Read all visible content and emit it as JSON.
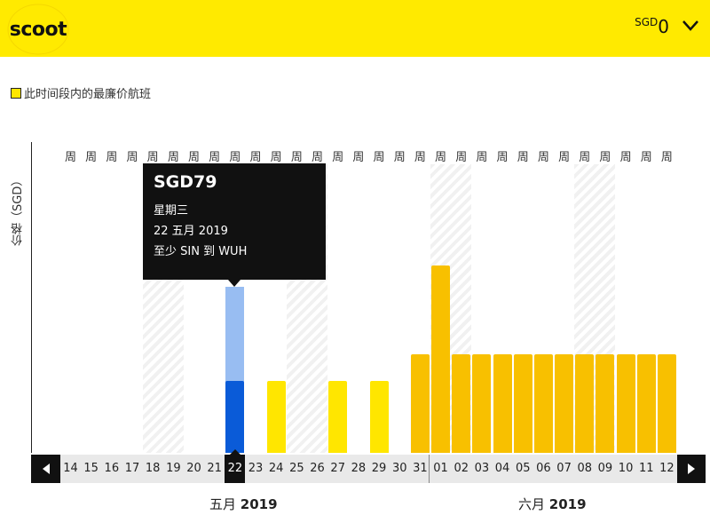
{
  "header": {
    "logo_text": "scoot",
    "currency_code": "SGD",
    "currency_count": "0"
  },
  "legend": {
    "text": "此时间段内的最廉价航班"
  },
  "y_axis_label": "价格（SGD）",
  "week_label": "周",
  "navigation": {
    "prev_icon": "triangle-left-icon",
    "next_icon": "triangle-right-icon"
  },
  "months": [
    {
      "name": "五月",
      "year": "2019"
    },
    {
      "name": "六月",
      "year": "2019"
    }
  ],
  "tooltip": {
    "price": "SGD79",
    "weekday": "星期三",
    "date": "22 五月 2019",
    "route": "至少 SIN 到 WUH"
  },
  "colors": {
    "brand_yellow": "#FFEA00",
    "bar_yellow": "#FFE600",
    "bar_gold": "#F8C000",
    "selected_blue": "#0A5BD8",
    "selected_light_blue": "#98BDF2"
  },
  "chart_data": {
    "type": "bar",
    "categories": [
      "14",
      "15",
      "16",
      "17",
      "18",
      "19",
      "20",
      "21",
      "22",
      "23",
      "24",
      "25",
      "26",
      "27",
      "28",
      "29",
      "30",
      "31",
      "01",
      "02",
      "03",
      "04",
      "05",
      "06",
      "07",
      "08",
      "09",
      "10",
      "11",
      "12"
    ],
    "values": [
      null,
      null,
      null,
      null,
      null,
      null,
      null,
      null,
      79,
      null,
      79,
      null,
      null,
      79,
      null,
      79,
      null,
      108,
      205,
      108,
      108,
      108,
      108,
      108,
      108,
      108,
      108,
      108,
      108,
      108
    ],
    "selected_index": 8,
    "weekend_indices": [
      4,
      5,
      11,
      12,
      18,
      19,
      25,
      26
    ],
    "cheapest_indices": [
      8,
      10,
      13,
      15
    ],
    "ylabel": "价格（SGD）",
    "grid": false,
    "legend": "top-left"
  }
}
